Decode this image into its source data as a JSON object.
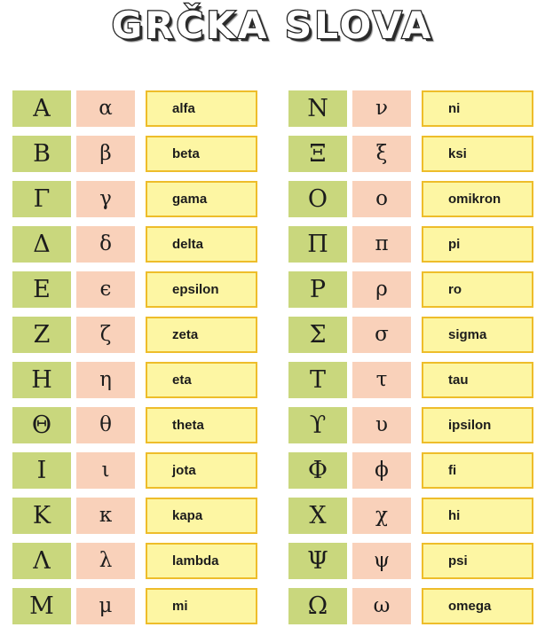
{
  "title": "GRČKA SLOVA",
  "colors": {
    "uppercase_bg": "#c9d77d",
    "lowercase_bg": "#f9d1ba",
    "name_bg": "#fdf6a3",
    "name_border": "#eebd2a",
    "text": "#1c1c1c"
  },
  "table": {
    "left": [
      {
        "upper": "A",
        "lower": "α",
        "name": "alfa"
      },
      {
        "upper": "B",
        "lower": "β",
        "name": "beta"
      },
      {
        "upper": "Γ",
        "lower": "γ",
        "name": "gama"
      },
      {
        "upper": "Δ",
        "lower": "δ",
        "name": "delta"
      },
      {
        "upper": "E",
        "lower": "ϵ",
        "name": "epsilon"
      },
      {
        "upper": "Z",
        "lower": "ζ",
        "name": "zeta"
      },
      {
        "upper": "H",
        "lower": "η",
        "name": "eta"
      },
      {
        "upper": "Θ",
        "lower": "θ",
        "name": "theta"
      },
      {
        "upper": "I",
        "lower": "ι",
        "name": "jota"
      },
      {
        "upper": "K",
        "lower": "κ",
        "name": "kapa"
      },
      {
        "upper": "Λ",
        "lower": "λ",
        "name": "lambda"
      },
      {
        "upper": "M",
        "lower": "μ",
        "name": "mi"
      }
    ],
    "right": [
      {
        "upper": "N",
        "lower": "ν",
        "name": "ni"
      },
      {
        "upper": "Ξ",
        "lower": "ξ",
        "name": "ksi"
      },
      {
        "upper": "O",
        "lower": "o",
        "name": "omikron"
      },
      {
        "upper": "Π",
        "lower": "π",
        "name": "pi"
      },
      {
        "upper": "P",
        "lower": "ρ",
        "name": "ro"
      },
      {
        "upper": "Σ",
        "lower": "σ",
        "name": "sigma"
      },
      {
        "upper": "T",
        "lower": "τ",
        "name": "tau"
      },
      {
        "upper": "ϒ",
        "lower": "υ",
        "name": "ipsilon"
      },
      {
        "upper": "Φ",
        "lower": "ϕ",
        "name": "fi"
      },
      {
        "upper": "X",
        "lower": "χ",
        "name": "hi"
      },
      {
        "upper": "Ψ",
        "lower": "ψ",
        "name": "psi"
      },
      {
        "upper": "Ω",
        "lower": "ω",
        "name": "omega"
      }
    ]
  }
}
